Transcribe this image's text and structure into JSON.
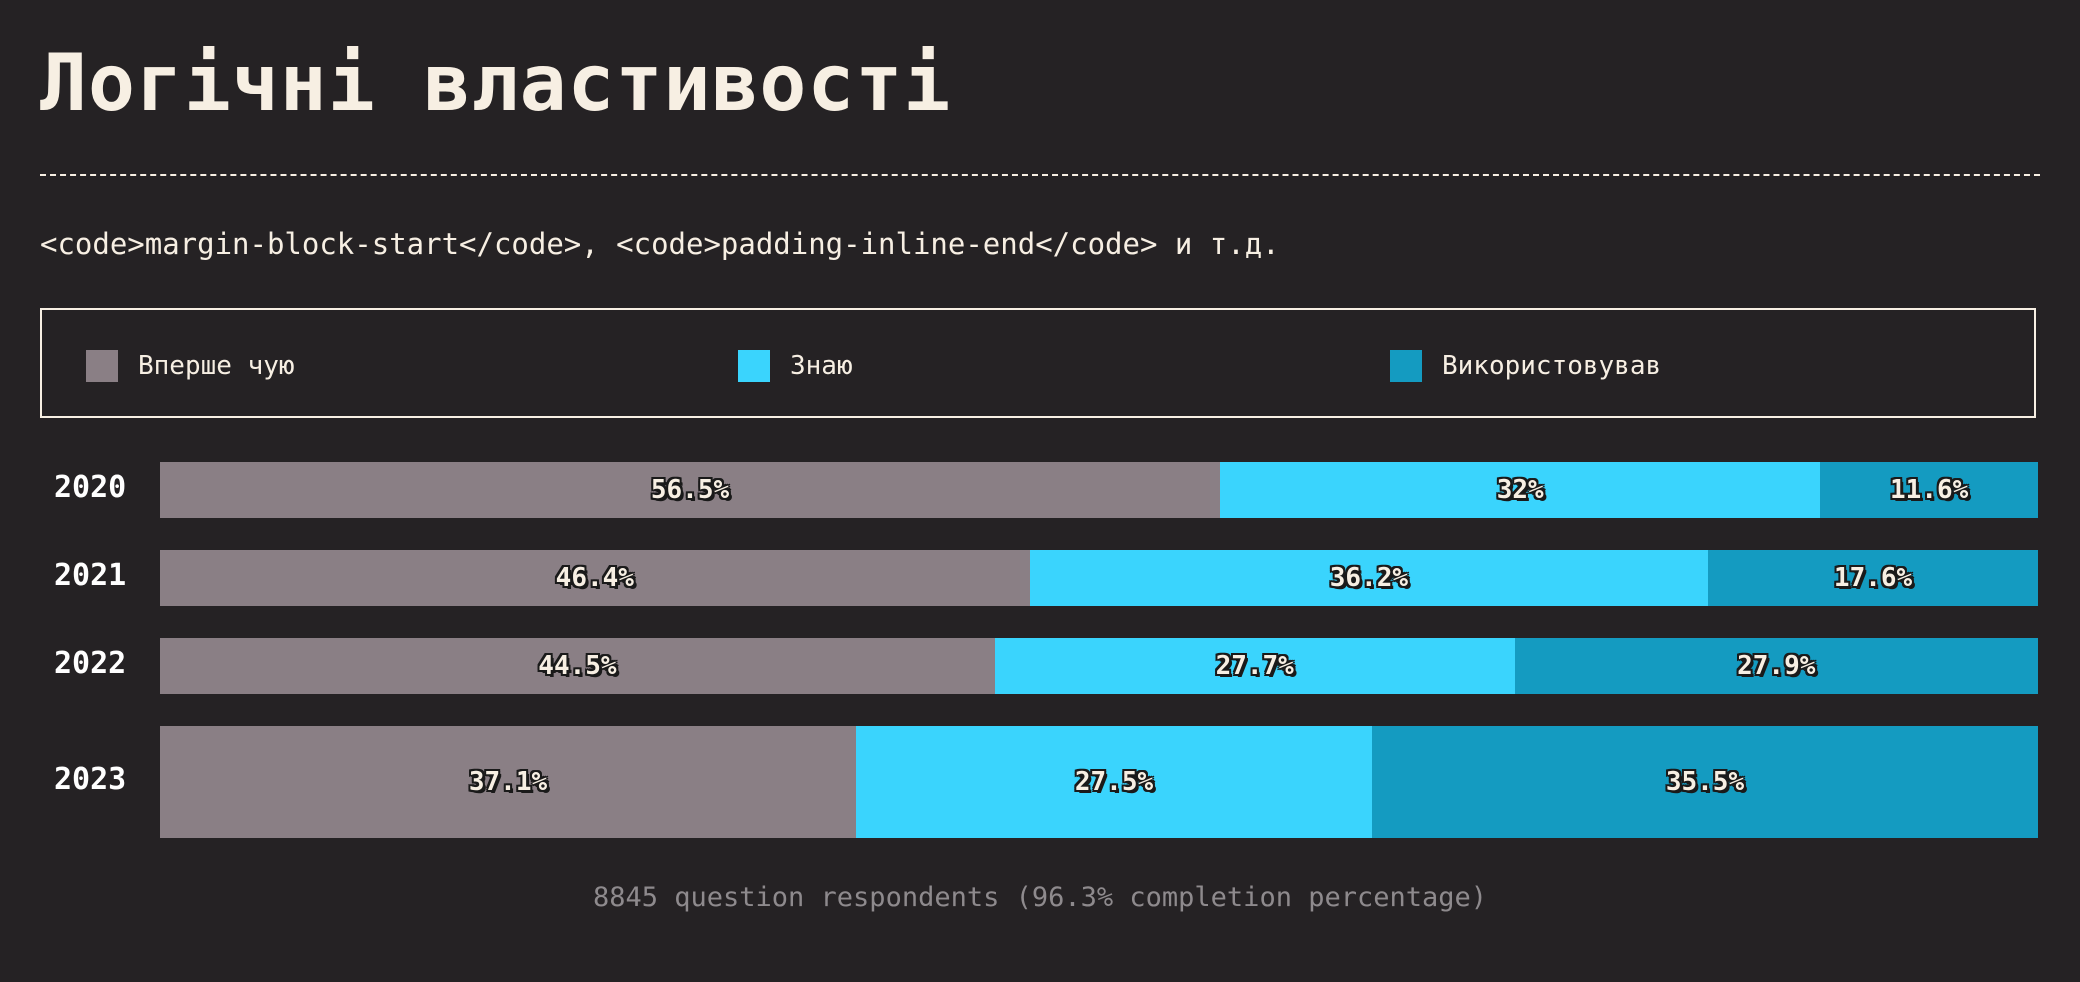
{
  "title": "Логічні властивості",
  "subtitle": "<code>margin-block-start</code>, <code>padding-inline-end</code> и т.д.",
  "footer": "8845 question respondents (96.3% completion percentage)",
  "colors": {
    "background": "#252224",
    "text": "#f7efe3"
  },
  "chart_data": {
    "type": "bar",
    "orientation": "horizontal",
    "stacked": true,
    "normalized": true,
    "categories": [
      "2020",
      "2021",
      "2022",
      "2023"
    ],
    "series": [
      {
        "name": "Вперше чую",
        "color": "#8a7f85",
        "values": [
          56.5,
          46.4,
          44.5,
          37.1
        ],
        "labels": [
          "56.5%",
          "46.4%",
          "44.5%",
          "37.1%"
        ]
      },
      {
        "name": "Знаю",
        "color": "#3ad4fd",
        "values": [
          32,
          36.2,
          27.7,
          27.5
        ],
        "labels": [
          "32%",
          "36.2%",
          "27.7%",
          "27.5%"
        ]
      },
      {
        "name": "Використовував",
        "color": "#149bc1",
        "values": [
          11.6,
          17.6,
          27.9,
          35.5
        ],
        "labels": [
          "11.6%",
          "17.6%",
          "27.9%",
          "35.5%"
        ]
      }
    ],
    "legend": "top",
    "grid": false
  }
}
